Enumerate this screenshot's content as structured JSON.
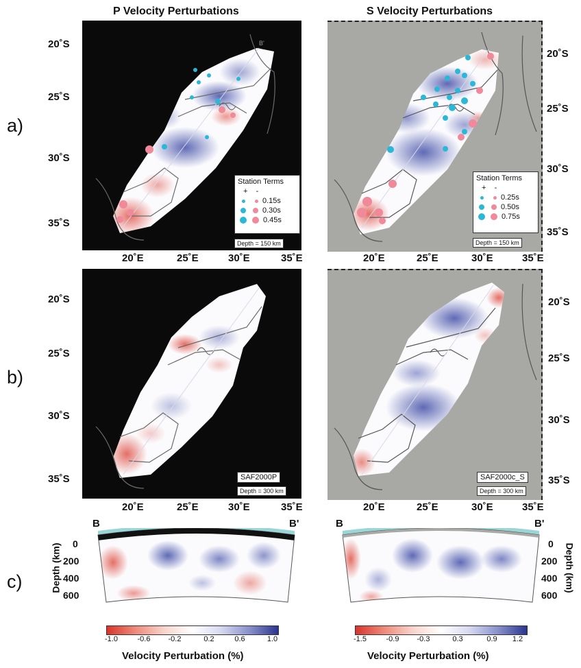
{
  "titles": {
    "left": "P Velocity Perturbations",
    "right": "S Velocity Perturbations"
  },
  "row_labels": {
    "a": "a)",
    "b": "b)",
    "c": "c)"
  },
  "latitudes": [
    "20˚S",
    "25˚S",
    "30˚S",
    "35˚S"
  ],
  "longitudes": [
    "20˚E",
    "25˚E",
    "30˚E",
    "35˚E"
  ],
  "profile_labels": {
    "start": "B",
    "end": "B'"
  },
  "panel_a_p": {
    "legend_title": "Station Terms",
    "plus": "+",
    "minus": "-",
    "values": [
      "0.15s",
      "0.30s",
      "0.45s"
    ],
    "depth": "Depth = 150 km"
  },
  "panel_a_s": {
    "legend_title": "Station Terms",
    "plus": "+",
    "minus": "-",
    "values": [
      "0.25s",
      "0.50s",
      "0.75s"
    ],
    "depth": "Depth = 150 km"
  },
  "panel_b_p": {
    "model": "SAF2000P",
    "depth": "Depth = 300 km"
  },
  "panel_b_s": {
    "model": "SAF2000c_S",
    "depth": "Depth = 300 km"
  },
  "cross_section": {
    "depth_ticks": [
      "0",
      "200",
      "400",
      "600"
    ],
    "depth_title": "Depth (km)"
  },
  "colorbar_p": {
    "ticks": [
      "-1.0",
      "-0.6",
      "-0.2",
      "0.2",
      "0.6",
      "1.0"
    ],
    "label": "Velocity Perturbation (%)"
  },
  "colorbar_s": {
    "ticks": [
      "-1.5",
      "-0.9",
      "-0.3",
      "0.3",
      "0.9",
      "1.2"
    ],
    "label": "Velocity Perturbation (%)"
  },
  "colors": {
    "p_background": "#0a0a0a",
    "s_background": "#a8a8a4",
    "fast": "#3a44a0",
    "slow": "#e05a4a",
    "station_plus": "#2ab8d6",
    "station_minus": "#f08a9a"
  }
}
